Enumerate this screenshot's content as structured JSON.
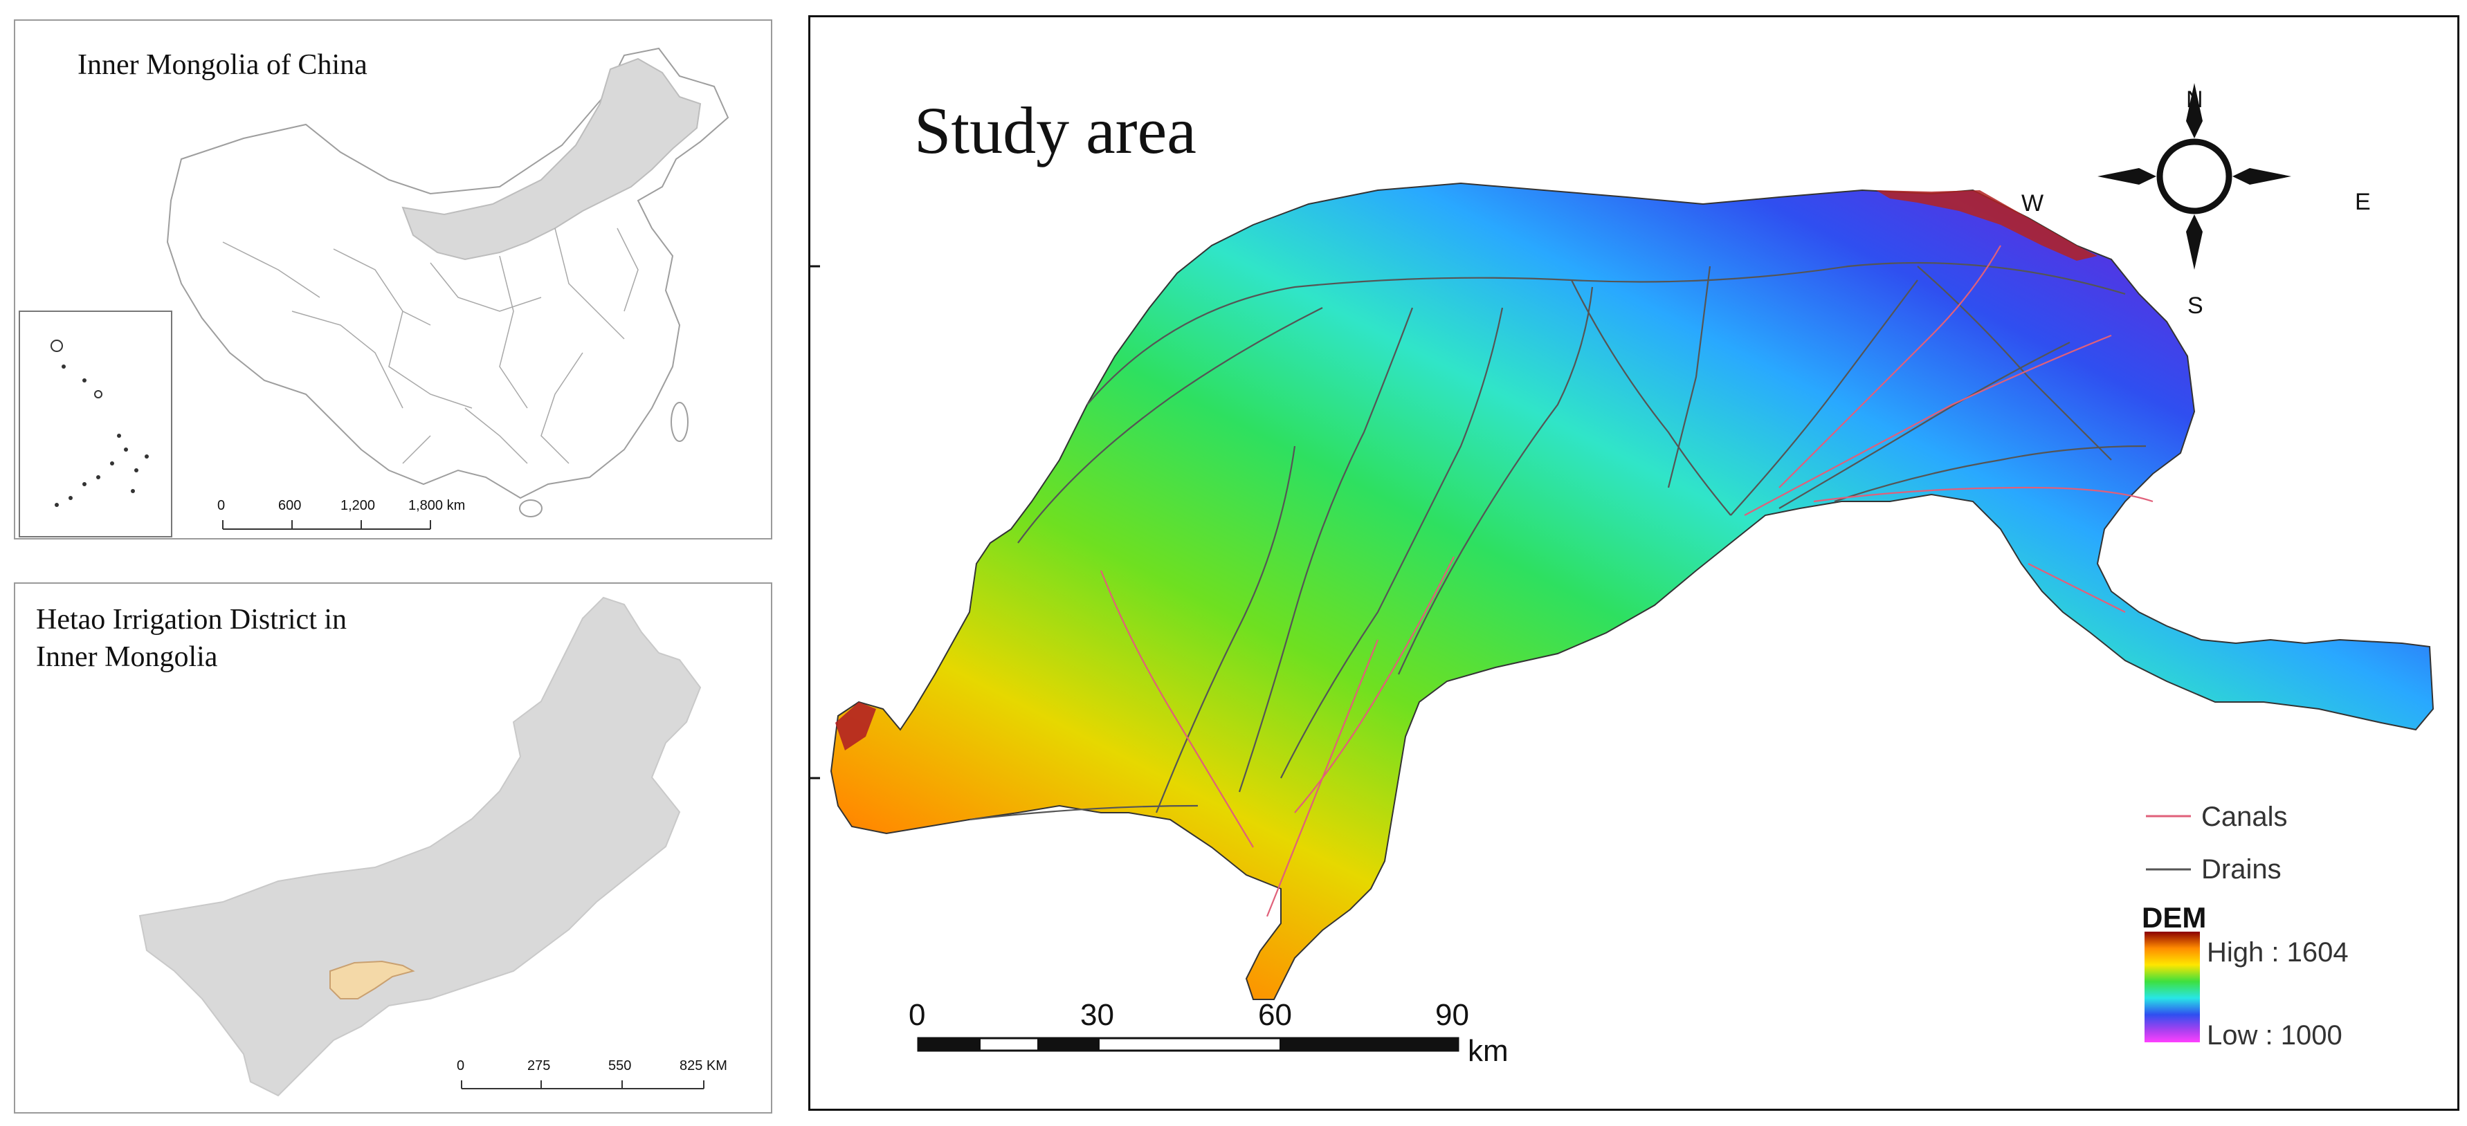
{
  "inset_china": {
    "title": "Inner Mongolia of China",
    "scale_labels": [
      "0",
      "600",
      "1,200",
      "1,800 km"
    ]
  },
  "inset_inner_mongolia": {
    "title_line1": "Hetao Irrigation District in",
    "title_line2": "Inner Mongolia",
    "scale_labels": [
      "0",
      "275",
      "550",
      "825 KM"
    ]
  },
  "main_map": {
    "title": "Study area",
    "compass": {
      "north": "N",
      "south": "S",
      "east": "E",
      "west": "W"
    },
    "legend": {
      "canals_label": "Canals",
      "drains_label": "Drains",
      "dem_title": "DEM",
      "dem_high": "High : 1604",
      "dem_low": "Low : 1000",
      "canal_color": "#e0607a",
      "drain_color": "#555555"
    },
    "scale": {
      "labels": [
        "0",
        "30",
        "60",
        "90"
      ],
      "unit": "km"
    },
    "colors": {
      "highlight_region": "#d9d9d9",
      "hetao": "#f4d9a8"
    }
  }
}
